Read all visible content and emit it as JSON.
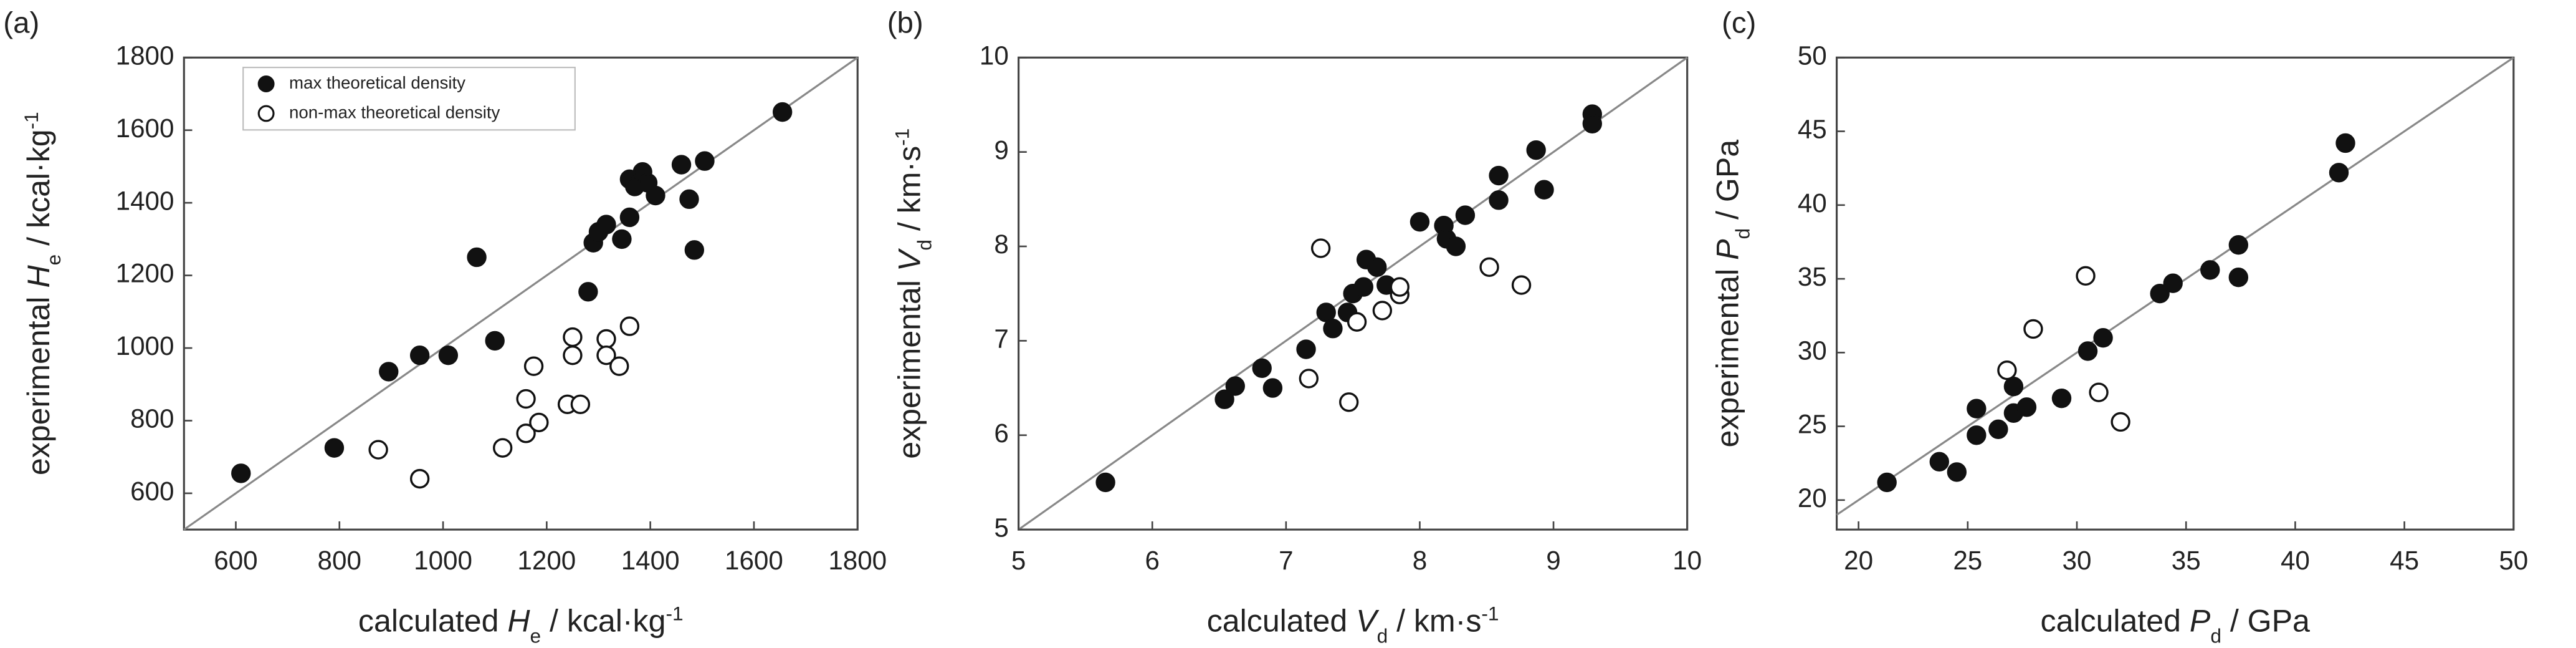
{
  "chart_data": [
    {
      "type": "scatter",
      "panel_label": "(a)",
      "xlabel": [
        "calculated ",
        "H",
        "e",
        " / kcal·kg",
        "-1"
      ],
      "xlabel_format": [
        "normal",
        "italic",
        "sub",
        "normal",
        "sup"
      ],
      "ylabel": [
        "experimental ",
        "H",
        "e",
        " / kcal·kg",
        "-1"
      ],
      "ylabel_format": [
        "normal",
        "italic",
        "sub",
        "normal",
        "sup"
      ],
      "xlim": [
        500,
        1800
      ],
      "ylim": [
        500,
        1800
      ],
      "xticks": [
        600,
        800,
        1000,
        1200,
        1400,
        1600,
        1800
      ],
      "yticks": [
        600,
        800,
        1000,
        1200,
        1400,
        1600,
        1800
      ],
      "diagonal": true,
      "legend": "upper left",
      "series": [
        {
          "name": "max theoretical density",
          "color": "#111111",
          "marker_fill": "#111111",
          "x": [
            610,
            790,
            895,
            955,
            1010,
            1065,
            1100,
            1280,
            1290,
            1300,
            1315,
            1345,
            1360,
            1360,
            1370,
            1385,
            1395,
            1410,
            1460,
            1475,
            1485,
            1505,
            1655
          ],
          "y": [
            655,
            725,
            935,
            980,
            980,
            1250,
            1020,
            1155,
            1290,
            1320,
            1340,
            1300,
            1360,
            1465,
            1445,
            1485,
            1455,
            1420,
            1505,
            1410,
            1270,
            1515,
            1650
          ]
        },
        {
          "name": "non-max theoretical density",
          "color": "#111111",
          "marker_fill": "#ffffff",
          "x": [
            875,
            955,
            1115,
            1160,
            1160,
            1185,
            1175,
            1250,
            1250,
            1240,
            1265,
            1315,
            1315,
            1340,
            1360
          ],
          "y": [
            720,
            640,
            725,
            860,
            765,
            795,
            950,
            1030,
            980,
            845,
            845,
            1025,
            980,
            950,
            1060
          ]
        }
      ]
    },
    {
      "type": "scatter",
      "panel_label": "(b)",
      "xlabel": [
        "calculated ",
        "V",
        "d",
        " / km·s",
        "-1"
      ],
      "xlabel_format": [
        "normal",
        "italic",
        "sub",
        "normal",
        "sup"
      ],
      "ylabel": [
        "experimental ",
        "V",
        "d",
        " / km·s",
        "-1"
      ],
      "ylabel_format": [
        "normal",
        "italic",
        "sub",
        "normal",
        "sup"
      ],
      "xlim": [
        5,
        10
      ],
      "ylim": [
        5,
        10
      ],
      "xticks": [
        5,
        6,
        7,
        8,
        9,
        10
      ],
      "yticks": [
        5,
        6,
        7,
        8,
        9,
        10
      ],
      "diagonal": true,
      "series": [
        {
          "color": "#111111",
          "marker_fill": "#111111",
          "x": [
            5.65,
            6.54,
            6.62,
            6.82,
            6.9,
            7.15,
            7.3,
            7.35,
            7.46,
            7.5,
            7.58,
            7.6,
            7.68,
            7.75,
            8.0,
            8.18,
            8.2,
            8.27,
            8.34,
            8.59,
            8.59,
            8.87,
            8.93,
            9.29,
            9.29
          ],
          "y": [
            5.5,
            6.38,
            6.52,
            6.71,
            6.5,
            6.91,
            7.3,
            7.13,
            7.3,
            7.5,
            7.57,
            7.86,
            7.78,
            7.59,
            8.26,
            8.22,
            8.08,
            8.0,
            8.33,
            8.75,
            8.49,
            9.02,
            8.6,
            9.4,
            9.3
          ]
        },
        {
          "color": "#111111",
          "marker_fill": "#ffffff",
          "x": [
            7.26,
            7.17,
            7.47,
            7.53,
            7.72,
            7.85,
            7.85,
            8.52,
            8.76
          ],
          "y": [
            7.98,
            6.6,
            6.35,
            7.2,
            7.32,
            7.49,
            7.57,
            7.78,
            7.59
          ]
        }
      ]
    },
    {
      "type": "scatter",
      "panel_label": "(c)",
      "xlabel": [
        "calculated ",
        "P",
        "d",
        " / GPa"
      ],
      "xlabel_format": [
        "normal",
        "italic",
        "sub",
        "normal"
      ],
      "ylabel": [
        "experimental ",
        "P",
        "d",
        " / GPa"
      ],
      "ylabel_format": [
        "normal",
        "italic",
        "sub",
        "normal"
      ],
      "xlim": [
        19,
        50
      ],
      "ylim": [
        18,
        50
      ],
      "xticks": [
        20,
        25,
        30,
        35,
        40,
        45,
        50
      ],
      "yticks": [
        20,
        25,
        30,
        35,
        40,
        45,
        50
      ],
      "diagonal": true,
      "series": [
        {
          "color": "#111111",
          "marker_fill": "#111111",
          "x": [
            21.3,
            23.7,
            24.5,
            25.4,
            25.4,
            26.4,
            27.1,
            27.1,
            27.7,
            29.3,
            30.5,
            31.2,
            33.8,
            34.4,
            36.1,
            37.4,
            37.4,
            42.0,
            42.3
          ],
          "y": [
            21.2,
            22.6,
            21.9,
            24.4,
            26.2,
            24.8,
            25.9,
            27.7,
            26.3,
            26.9,
            30.1,
            31.0,
            34.0,
            34.7,
            35.6,
            37.3,
            35.1,
            42.2,
            44.2
          ]
        },
        {
          "color": "#111111",
          "marker_fill": "#ffffff",
          "x": [
            26.8,
            28.0,
            30.4,
            31.0,
            32.0
          ],
          "y": [
            28.8,
            31.6,
            35.2,
            27.3,
            25.3
          ]
        }
      ]
    }
  ]
}
